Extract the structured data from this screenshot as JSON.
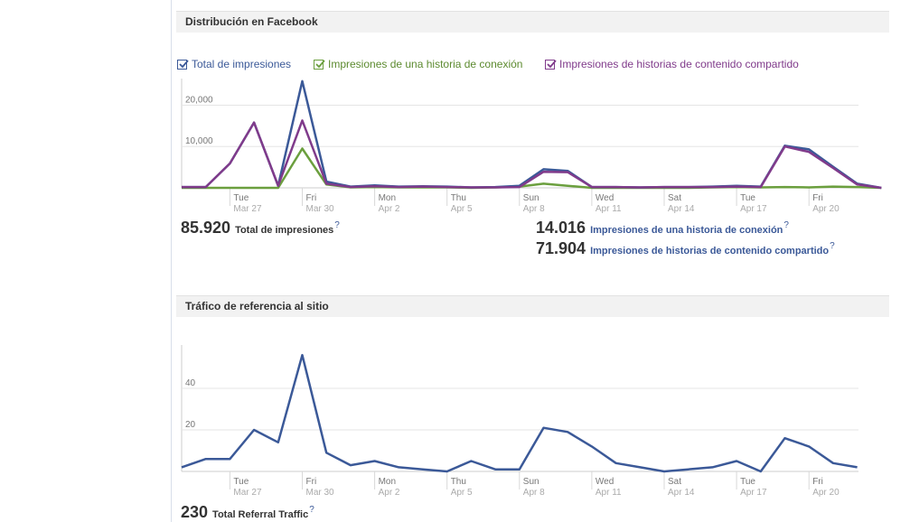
{
  "section1": {
    "title": "Distribución en Facebook",
    "legend": [
      {
        "label": "Total de impresiones",
        "color": "#3b5998"
      },
      {
        "label": "Impresiones de una historia de conexión",
        "color": "#6b9f3e"
      },
      {
        "label": "Impresiones de historias de contenido compartido",
        "color": "#803b8b"
      }
    ],
    "stats": {
      "total_value": "85.920",
      "total_label": "Total de impresiones",
      "conexion_value": "14.016",
      "conexion_label": "Impresiones de una historia de conexión",
      "compartido_value": "71.904",
      "compartido_label": "Impresiones de historias de contenido compartido",
      "help": "?"
    }
  },
  "section2": {
    "title": "Tráfico de referencia al sitio",
    "stats": {
      "total_value": "230",
      "total_label": "Total Referral Traffic",
      "help": "?"
    }
  },
  "chart_data": [
    {
      "type": "line",
      "ylim": [
        0,
        26000
      ],
      "yticks": [
        10000,
        20000
      ],
      "ytick_labels": [
        "10,000",
        "20,000"
      ],
      "grid": true,
      "xticks": [
        {
          "index": 2,
          "day": "Tue",
          "date": "Mar 27"
        },
        {
          "index": 5,
          "day": "Fri",
          "date": "Mar 30"
        },
        {
          "index": 8,
          "day": "Mon",
          "date": "Apr 2"
        },
        {
          "index": 11,
          "day": "Thu",
          "date": "Apr 5"
        },
        {
          "index": 14,
          "day": "Sun",
          "date": "Apr 8"
        },
        {
          "index": 17,
          "day": "Wed",
          "date": "Apr 11"
        },
        {
          "index": 20,
          "day": "Sat",
          "date": "Apr 14"
        },
        {
          "index": 23,
          "day": "Tue",
          "date": "Apr 17"
        },
        {
          "index": 26,
          "day": "Fri",
          "date": "Apr 20"
        }
      ],
      "series": [
        {
          "name": "Impresiones de una historia de conexión",
          "color": "#6b9f3e",
          "values": [
            0,
            0,
            0,
            0,
            0,
            9500,
            800,
            100,
            200,
            100,
            100,
            100,
            0,
            100,
            300,
            1000,
            500,
            0,
            0,
            0,
            0,
            0,
            100,
            200,
            100,
            200,
            100,
            300,
            200,
            0
          ]
        },
        {
          "name": "Total de impresiones",
          "color": "#3b5998",
          "values": [
            200,
            200,
            5900,
            15800,
            500,
            25800,
            1500,
            300,
            600,
            300,
            400,
            300,
            100,
            200,
            500,
            4500,
            4100,
            200,
            200,
            100,
            200,
            200,
            300,
            500,
            300,
            10200,
            9300,
            5100,
            1000,
            0
          ]
        },
        {
          "name": "Impresiones de historias de contenido compartido",
          "color": "#803b8b",
          "values": [
            200,
            200,
            5900,
            15800,
            500,
            16300,
            1000,
            200,
            400,
            200,
            300,
            200,
            100,
            100,
            200,
            3900,
            3800,
            200,
            200,
            100,
            200,
            200,
            200,
            300,
            200,
            10000,
            8700,
            4800,
            800,
            0
          ]
        }
      ]
    },
    {
      "type": "line",
      "ylim": [
        0,
        60
      ],
      "yticks": [
        20,
        40
      ],
      "ytick_labels": [
        "20",
        "40"
      ],
      "grid": true,
      "xticks": [
        {
          "index": 2,
          "day": "Tue",
          "date": "Mar 27"
        },
        {
          "index": 5,
          "day": "Fri",
          "date": "Mar 30"
        },
        {
          "index": 8,
          "day": "Mon",
          "date": "Apr 2"
        },
        {
          "index": 11,
          "day": "Thu",
          "date": "Apr 5"
        },
        {
          "index": 14,
          "day": "Sun",
          "date": "Apr 8"
        },
        {
          "index": 17,
          "day": "Wed",
          "date": "Apr 11"
        },
        {
          "index": 20,
          "day": "Sat",
          "date": "Apr 14"
        },
        {
          "index": 23,
          "day": "Tue",
          "date": "Apr 17"
        },
        {
          "index": 26,
          "day": "Fri",
          "date": "Apr 20"
        }
      ],
      "series": [
        {
          "color": "#3b5998",
          "values": [
            2,
            6,
            6,
            20,
            14,
            56,
            9,
            3,
            5,
            2,
            1,
            0,
            5,
            1,
            1,
            21,
            19,
            12,
            4,
            2,
            0,
            1,
            2,
            5,
            0,
            16,
            12,
            4,
            2
          ]
        }
      ]
    }
  ]
}
